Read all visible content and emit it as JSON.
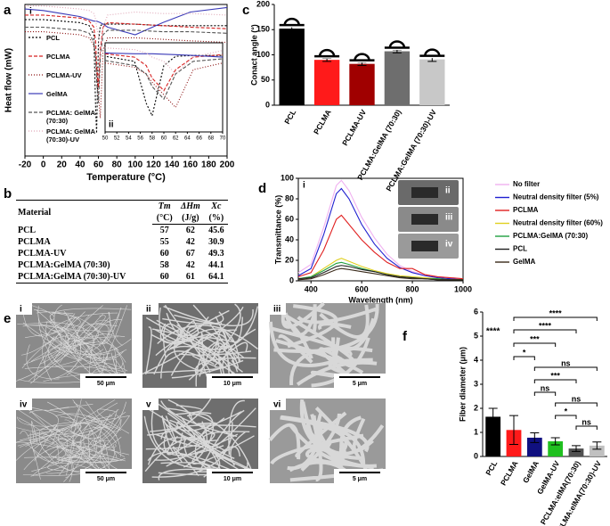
{
  "panel_labels": [
    "a",
    "b",
    "c",
    "d",
    "e",
    "f"
  ],
  "chart_data": [
    {
      "type": "line",
      "panel_number": "i",
      "xlabel": "Temperature (°C)",
      "ylabel": "Heat flow (mW)",
      "x": [
        -20,
        0,
        20,
        40,
        50,
        55,
        57,
        58,
        60,
        62,
        65,
        70,
        100,
        130,
        160,
        200
      ],
      "xlim": [
        -20,
        200
      ],
      "xticks": [
        -20,
        0,
        20,
        40,
        60,
        80,
        100,
        120,
        140,
        160,
        180,
        200
      ],
      "ylim": [
        0,
        10
      ],
      "series": [
        {
          "name": "PCL",
          "color": "#000000",
          "dash": "2,2",
          "values": [
            9.0,
            9.0,
            8.9,
            8.8,
            8.6,
            8.0,
            3.0,
            1.5,
            7.5,
            8.6,
            8.7,
            8.7,
            8.7,
            8.6,
            8.6,
            8.6
          ]
        },
        {
          "name": "PCLMA",
          "color": "#d62020",
          "dash": "4,2",
          "values": [
            9.3,
            9.3,
            9.2,
            9.1,
            8.9,
            8.5,
            7.5,
            6.0,
            4.5,
            7.0,
            8.5,
            8.8,
            8.7,
            8.6,
            8.5,
            8.4
          ]
        },
        {
          "name": "PCLMA-UV",
          "color": "#8b1010",
          "dash": "1,2",
          "values": [
            8.2,
            8.2,
            8.1,
            8.0,
            7.8,
            7.3,
            6.5,
            5.5,
            4.0,
            2.5,
            7.0,
            7.8,
            7.8,
            7.7,
            7.6,
            7.5
          ]
        },
        {
          "name": "GelMA",
          "color": "#3a3ab8",
          "dash": "",
          "values": [
            9.7,
            9.6,
            9.4,
            9.2,
            9.0,
            8.9,
            8.9,
            8.9,
            8.85,
            8.8,
            8.7,
            8.5,
            8.0,
            8.8,
            9.5,
            9.8
          ]
        },
        {
          "name": "PCLMA: GelMA (70:30)",
          "color": "#555555",
          "dash": "4,2",
          "values": [
            8.5,
            8.5,
            8.4,
            8.3,
            8.1,
            7.5,
            6.5,
            5.0,
            3.5,
            6.5,
            8.0,
            8.3,
            8.3,
            8.2,
            8.2,
            8.1
          ]
        },
        {
          "name": "PCLMA: GelMA (70:30)-UV",
          "color": "#e0a8b8",
          "dash": "1,2",
          "values": [
            9.9,
            9.9,
            9.8,
            9.7,
            9.6,
            9.4,
            9.0,
            8.5,
            8.0,
            6.5,
            8.5,
            9.3,
            9.5,
            9.4,
            9.4,
            9.3
          ]
        }
      ],
      "inset": {
        "panel_number": "ii",
        "xlim": [
          50,
          70
        ],
        "xticks": [
          50,
          52,
          54,
          56,
          58,
          60,
          62,
          64,
          66,
          68,
          70
        ],
        "ylim": [
          0,
          10
        ]
      }
    },
    {
      "type": "bar",
      "ylabel": "Conact angle (°)",
      "categories": [
        "PCL",
        "PCLMA",
        "PCLMA-UV",
        "PCLMA:GelMA (70:30)",
        "PCLMA:GelMA (70:30)-UV"
      ],
      "values": [
        152,
        90,
        82,
        107,
        91
      ],
      "errors": [
        4,
        3,
        3,
        3,
        4
      ],
      "colors": [
        "#000000",
        "#ff1a1a",
        "#a00000",
        "#6e6e6e",
        "#c8c8c8"
      ],
      "ylim": [
        0,
        200
      ],
      "yticks": [
        0,
        50,
        100,
        150,
        200
      ]
    },
    {
      "type": "line",
      "panel_number": "i",
      "xlabel": "Wavelength (nm)",
      "ylabel": "Transmittance (%)",
      "x": [
        350,
        400,
        450,
        500,
        520,
        550,
        600,
        650,
        700,
        750,
        800,
        850,
        900,
        950,
        1000
      ],
      "xlim": [
        350,
        1000
      ],
      "xticks": [
        400,
        600,
        800,
        1000
      ],
      "ylim": [
        0,
        100
      ],
      "yticks": [
        0,
        20,
        40,
        60,
        80,
        100
      ],
      "series": [
        {
          "name": "No filter",
          "color": "#f0b0f0",
          "dash": "",
          "values": [
            8,
            16,
            52,
            93,
            98,
            88,
            62,
            42,
            26,
            15,
            9,
            6,
            4,
            3,
            2
          ]
        },
        {
          "name": "Neutral density filter (5%)",
          "color": "#2020d0",
          "dash": "",
          "values": [
            5,
            12,
            45,
            85,
            90,
            80,
            55,
            36,
            22,
            13,
            8,
            5,
            3,
            2,
            1
          ]
        },
        {
          "name": "PCLMA",
          "color": "#e02020",
          "dash": "",
          "values": [
            4,
            8,
            30,
            60,
            64,
            55,
            40,
            28,
            18,
            12,
            12,
            6,
            4,
            3,
            2
          ]
        },
        {
          "name": "Neutral density filter (60%)",
          "color": "#e0d020",
          "dash": "",
          "values": [
            2,
            4,
            12,
            20,
            22,
            19,
            14,
            10,
            7,
            5,
            4,
            3,
            2,
            1,
            1
          ]
        },
        {
          "name": "PCLMA:GelMA (70:30)",
          "color": "#20a040",
          "dash": "",
          "values": [
            2,
            4,
            10,
            17,
            18,
            16,
            12,
            9,
            6,
            4,
            3,
            2,
            2,
            1,
            1
          ]
        },
        {
          "name": "PCL",
          "color": "#202020",
          "dash": "",
          "values": [
            2,
            3,
            8,
            14,
            15,
            14,
            11,
            9,
            6,
            4,
            3,
            2,
            1,
            1,
            1
          ]
        },
        {
          "name": "GelMA",
          "color": "#3a2a1a",
          "dash": "",
          "values": [
            1,
            2,
            6,
            11,
            12,
            11,
            9,
            7,
            5,
            3,
            2,
            2,
            1,
            1,
            1
          ]
        }
      ],
      "photos": [
        "ii",
        "iii",
        "iv"
      ]
    },
    {
      "type": "bar",
      "ylabel": "Fiber diameter (μm)",
      "categories": [
        "PCL",
        "PCLMA",
        "GelMA",
        "GelMA-UV",
        "PCLMA:elMA(70:30)",
        "PCLMA:elMA(70:30)-UV"
      ],
      "values": [
        1.65,
        1.1,
        0.78,
        0.63,
        0.33,
        0.45
      ],
      "errors": [
        0.35,
        0.6,
        0.2,
        0.15,
        0.12,
        0.15
      ],
      "colors": [
        "#000000",
        "#ff1a1a",
        "#101080",
        "#20c020",
        "#505050",
        "#c0c0c0"
      ],
      "ylim": [
        0,
        6
      ],
      "yticks": [
        0,
        1,
        2,
        3,
        4,
        5,
        6
      ],
      "annotations": [
        "****",
        "****",
        "****",
        "***",
        "*",
        "ns",
        "***",
        "ns",
        "ns",
        "*",
        "ns"
      ]
    }
  ],
  "table": {
    "header": [
      "Material",
      "Tm",
      "ΔHm",
      "Xc"
    ],
    "units": [
      "(°C)",
      "(J/g)",
      "(%)"
    ],
    "rows": [
      [
        "PCL",
        "57",
        "62",
        "45.6"
      ],
      [
        "PCLMA",
        "55",
        "42",
        "30.9"
      ],
      [
        "PCLMA-UV",
        "60",
        "67",
        "49.3"
      ],
      [
        "PCLMA:GelMA (70:30)",
        "58",
        "42",
        "44.1"
      ],
      [
        "PCLMA:GelMA (70:30)-UV",
        "60",
        "61",
        "64.1"
      ]
    ]
  },
  "images": [
    {
      "label": "i",
      "scale": "50 μm"
    },
    {
      "label": "ii",
      "scale": "10 μm"
    },
    {
      "label": "iii",
      "scale": "5 μm"
    },
    {
      "label": "iv",
      "scale": "50 μm"
    },
    {
      "label": "v",
      "scale": "10 μm"
    },
    {
      "label": "vi",
      "scale": "5 μm"
    }
  ]
}
